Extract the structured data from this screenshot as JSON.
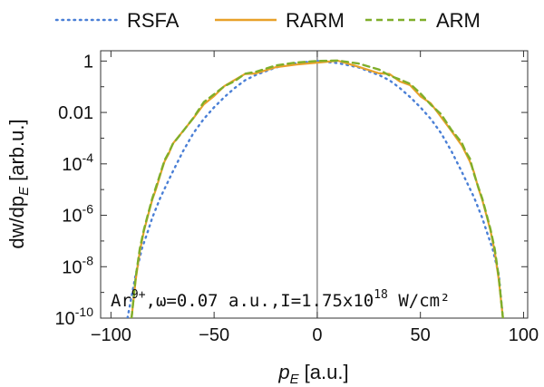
{
  "chart_data": {
    "type": "line",
    "title": "",
    "xlabel": "p",
    "xlabel_sub": "E",
    "xlabel_unit": "[a.u.]",
    "ylabel": "dw/dp",
    "ylabel_sub": "E",
    "ylabel_unit": "[arb.u.]",
    "xlim": [
      -105,
      102
    ],
    "ylim_log10": [
      -10,
      0.4
    ],
    "x_ticks": [
      {
        "value": -100,
        "label": "−100"
      },
      {
        "value": -50,
        "label": "−50"
      },
      {
        "value": 0,
        "label": "0"
      },
      {
        "value": 50,
        "label": "50"
      },
      {
        "value": 100,
        "label": "100"
      }
    ],
    "y_ticks": [
      {
        "exp": 0,
        "label": "1"
      },
      {
        "exp": -2,
        "label": "0.01"
      },
      {
        "exp": -4,
        "base": "10",
        "sup": "-4"
      },
      {
        "exp": -6,
        "base": "10",
        "sup": "-6"
      },
      {
        "exp": -8,
        "base": "10",
        "sup": "-8"
      },
      {
        "exp": -10,
        "base": "10",
        "sup": "-10"
      }
    ],
    "legend_position": "top",
    "series": [
      {
        "name": "RSFA",
        "color": "#4a7fd6",
        "style": "dotted",
        "x": [
          -92,
          -88,
          -85,
          -82,
          -80,
          -76,
          -70,
          -65,
          -60,
          -55,
          -50,
          -45,
          -40,
          -35,
          -30,
          -20,
          -10,
          0,
          10,
          20,
          30,
          35,
          40,
          45,
          50,
          55,
          60,
          65,
          70,
          76,
          80,
          82,
          85,
          88,
          90
        ],
        "log10_y": [
          -10,
          -8.3,
          -7.3,
          -6.6,
          -6.1,
          -5.3,
          -4.3,
          -3.5,
          -2.8,
          -2.25,
          -1.8,
          -1.4,
          -1.05,
          -0.75,
          -0.55,
          -0.25,
          -0.08,
          0,
          -0.08,
          -0.25,
          -0.55,
          -0.75,
          -1.05,
          -1.4,
          -1.8,
          -2.25,
          -2.8,
          -3.5,
          -4.3,
          -5.3,
          -6.1,
          -6.6,
          -7.3,
          -8.3,
          -10
        ]
      },
      {
        "name": "RARM",
        "color": "#e8a12a",
        "style": "solid",
        "x": [
          -90,
          -88,
          -86,
          -84,
          -82,
          -80,
          -78,
          -76,
          -74,
          -72,
          -70,
          -65,
          -60,
          -55,
          -50,
          -45,
          -40,
          -35,
          -30,
          -20,
          -10,
          0,
          10,
          20,
          30,
          35,
          40,
          45,
          50,
          55,
          60,
          65,
          70,
          72,
          74,
          76,
          78,
          80,
          82,
          84,
          86,
          88,
          90
        ],
        "log10_y": [
          -10,
          -8.5,
          -7.4,
          -6.6,
          -6.0,
          -5.4,
          -4.9,
          -4.4,
          -3.9,
          -3.6,
          -3.3,
          -2.7,
          -2.2,
          -1.7,
          -1.3,
          -1.0,
          -0.75,
          -0.55,
          -0.4,
          -0.2,
          -0.07,
          0,
          -0.07,
          -0.2,
          -0.4,
          -0.55,
          -0.75,
          -1.0,
          -1.3,
          -1.7,
          -2.2,
          -2.7,
          -3.3,
          -3.6,
          -3.9,
          -4.4,
          -4.9,
          -5.4,
          -6.0,
          -6.6,
          -7.4,
          -8.5,
          -10
        ]
      },
      {
        "name": "ARM",
        "color": "#7fae2a",
        "style": "dashed",
        "x": [
          -90,
          -88,
          -86,
          -84,
          -82,
          -80,
          -78,
          -76,
          -74,
          -72,
          -70,
          -65,
          -60,
          -55,
          -50,
          -45,
          -40,
          -35,
          -30,
          -20,
          -10,
          0,
          10,
          20,
          30,
          35,
          40,
          45,
          50,
          55,
          60,
          65,
          70,
          72,
          74,
          76,
          78,
          80,
          82,
          84,
          86,
          88,
          90
        ],
        "log10_y": [
          -10,
          -8.4,
          -7.3,
          -6.55,
          -5.95,
          -5.35,
          -4.85,
          -4.35,
          -3.85,
          -3.55,
          -3.25,
          -2.65,
          -2.15,
          -1.65,
          -1.25,
          -0.95,
          -0.7,
          -0.5,
          -0.35,
          -0.17,
          -0.05,
          0,
          -0.05,
          -0.17,
          -0.35,
          -0.5,
          -0.7,
          -0.95,
          -1.25,
          -1.65,
          -2.15,
          -2.65,
          -3.25,
          -3.55,
          -3.85,
          -4.35,
          -4.85,
          -5.35,
          -5.95,
          -6.55,
          -7.3,
          -8.4,
          -10
        ]
      }
    ],
    "annotation": {
      "species": "Ar",
      "charge": "9+",
      "omega": ",ω=0.07 a.u.,",
      "intensity_prefix": "I=1.75x10",
      "intensity_exp": "18",
      "intensity_unit": " W/cm²"
    }
  }
}
